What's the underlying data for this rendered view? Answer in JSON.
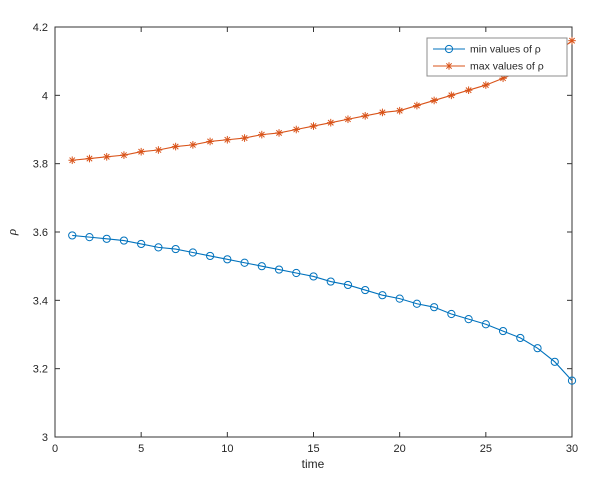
{
  "chart_data": {
    "type": "line",
    "title": "",
    "xlabel": "time",
    "ylabel": "ρ",
    "xlim": [
      0,
      30
    ],
    "ylim": [
      3,
      4.2
    ],
    "xticks": [
      0,
      5,
      10,
      15,
      20,
      25,
      30
    ],
    "xtick_labels": [
      "0",
      "5",
      "10",
      "15",
      "20",
      "25",
      "30"
    ],
    "yticks": [
      3,
      3.2,
      3.4,
      3.6,
      3.8,
      4,
      4.2
    ],
    "ytick_labels": [
      "3",
      "3.2",
      "3.4",
      "3.6",
      "3.8",
      "4",
      "4.2"
    ],
    "grid": false,
    "legend_position": "top-right",
    "axis_color": "#333333",
    "tick_label_color": "#262626",
    "legend_border_color": "#8c8c8c",
    "x": [
      1,
      2,
      3,
      4,
      5,
      6,
      7,
      8,
      9,
      10,
      11,
      12,
      13,
      14,
      15,
      16,
      17,
      18,
      19,
      20,
      21,
      22,
      23,
      24,
      25,
      26,
      27,
      28,
      29,
      30
    ],
    "series": [
      {
        "name": "min values of ρ",
        "marker": "circle",
        "color": "#0072BD",
        "values": [
          3.59,
          3.585,
          3.58,
          3.575,
          3.565,
          3.555,
          3.55,
          3.54,
          3.53,
          3.52,
          3.51,
          3.5,
          3.49,
          3.48,
          3.47,
          3.455,
          3.445,
          3.43,
          3.415,
          3.405,
          3.39,
          3.38,
          3.36,
          3.345,
          3.33,
          3.31,
          3.29,
          3.26,
          3.22,
          3.165
        ]
      },
      {
        "name": "max values of ρ",
        "marker": "asterisk",
        "color": "#D95319",
        "values": [
          3.81,
          3.815,
          3.82,
          3.825,
          3.835,
          3.84,
          3.85,
          3.855,
          3.865,
          3.87,
          3.875,
          3.885,
          3.89,
          3.9,
          3.91,
          3.92,
          3.93,
          3.94,
          3.95,
          3.955,
          3.97,
          3.985,
          4.0,
          4.015,
          4.03,
          4.05,
          4.07,
          4.09,
          4.12,
          4.16
        ]
      }
    ]
  }
}
